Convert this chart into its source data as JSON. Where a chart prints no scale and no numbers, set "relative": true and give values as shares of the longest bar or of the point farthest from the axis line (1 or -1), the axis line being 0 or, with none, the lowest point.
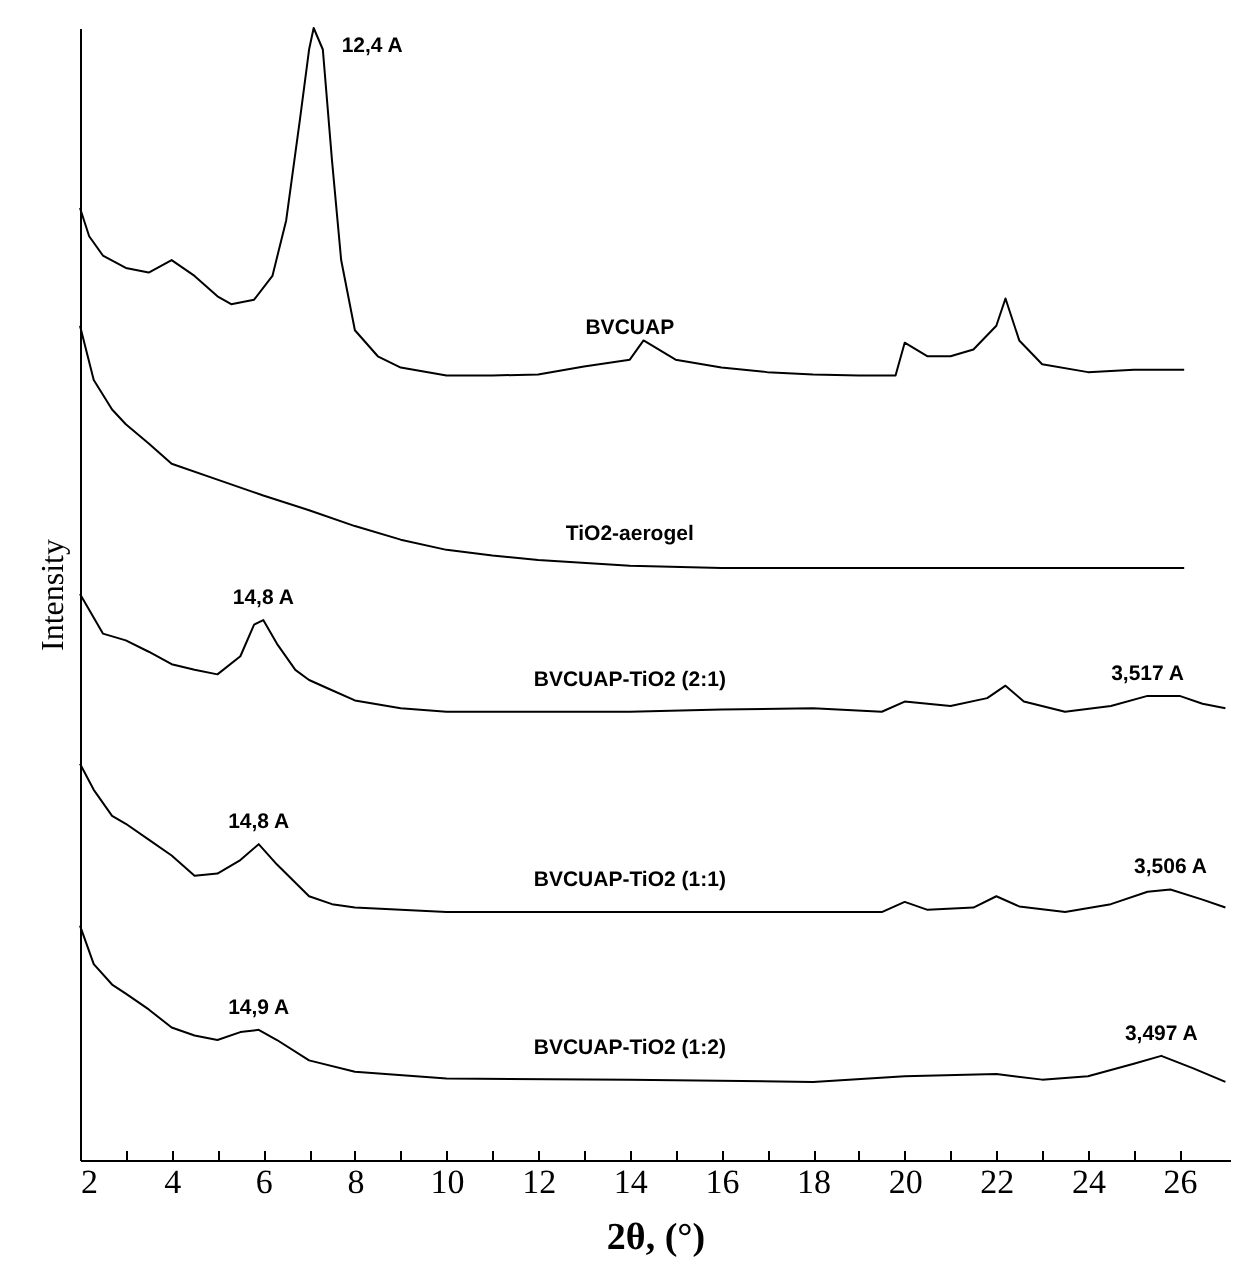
{
  "chart_data": {
    "type": "line",
    "xlabel": "2θ, (°)",
    "ylabel": "Intensity",
    "relative": true,
    "grid": false,
    "marker": "none",
    "line_style": "solid",
    "xlim": [
      2,
      27.1
    ],
    "xticks": [
      2,
      {
        "value": 3,
        "label": null
      },
      4,
      {
        "value": 5,
        "label": null
      },
      6,
      {
        "value": 7,
        "label": null
      },
      8,
      {
        "value": 9,
        "label": null
      },
      10,
      {
        "value": 11,
        "label": null
      },
      12,
      {
        "value": 13,
        "label": null
      },
      14,
      {
        "value": 15,
        "label": null
      },
      16,
      {
        "value": 17,
        "label": null
      },
      18,
      {
        "value": 19,
        "label": null
      },
      20,
      {
        "value": 21,
        "label": null
      },
      22,
      {
        "value": 23,
        "label": null
      },
      24,
      {
        "value": 25,
        "label": null
      },
      26
    ],
    "series": [
      {
        "name": "BVCUAP",
        "color": "#000000",
        "x": [
          2,
          2.2,
          2.5,
          3,
          3.5,
          4,
          4.5,
          5,
          5.3,
          5.8,
          6.2,
          6.5,
          6.8,
          7,
          7.1,
          7.3,
          7.5,
          7.7,
          8,
          8.5,
          9,
          10,
          11,
          12,
          13,
          14,
          14.3,
          15,
          16,
          17,
          18,
          19,
          19.8,
          20,
          20.5,
          21,
          21.5,
          22,
          22.2,
          22.5,
          23,
          24,
          25,
          26.1
        ],
        "values": [
          0.841,
          0.816,
          0.799,
          0.788,
          0.784,
          0.795,
          0.781,
          0.763,
          0.756,
          0.76,
          0.781,
          0.83,
          0.919,
          0.981,
          1,
          0.981,
          0.883,
          0.795,
          0.733,
          0.71,
          0.7,
          0.693,
          0.693,
          0.694,
          0.701,
          0.707,
          0.724,
          0.707,
          0.7,
          0.696,
          0.694,
          0.693,
          0.693,
          0.722,
          0.71,
          0.71,
          0.716,
          0.737,
          0.761,
          0.724,
          0.703,
          0.696,
          0.698,
          0.698
        ]
      },
      {
        "name": "TiO2-aerogel",
        "color": "#000000",
        "x": [
          2,
          2.3,
          2.7,
          3,
          3.5,
          4,
          5,
          6,
          7,
          8,
          9,
          10,
          11,
          12,
          14,
          16,
          20,
          24,
          26.1
        ],
        "values": [
          0.737,
          0.689,
          0.663,
          0.65,
          0.633,
          0.615,
          0.601,
          0.587,
          0.574,
          0.56,
          0.548,
          0.539,
          0.534,
          0.53,
          0.525,
          0.523,
          0.523,
          0.523,
          0.523
        ]
      },
      {
        "name": "BVCUAP-TiO2 (2:1)",
        "color": "#000000",
        "x": [
          2,
          2.5,
          3,
          3.5,
          4,
          4.5,
          5,
          5.5,
          5.8,
          6,
          6.3,
          6.7,
          7,
          7.5,
          8,
          9,
          10,
          12,
          14,
          16,
          18,
          19.5,
          20,
          21,
          21.8,
          22.2,
          22.6,
          23.5,
          24.5,
          25.3,
          26,
          26.5,
          27
        ],
        "values": [
          0.5,
          0.465,
          0.459,
          0.449,
          0.438,
          0.433,
          0.429,
          0.445,
          0.473,
          0.477,
          0.456,
          0.433,
          0.424,
          0.415,
          0.406,
          0.399,
          0.396,
          0.396,
          0.396,
          0.398,
          0.399,
          0.396,
          0.405,
          0.401,
          0.408,
          0.419,
          0.405,
          0.396,
          0.401,
          0.41,
          0.41,
          0.403,
          0.399
        ]
      },
      {
        "name": "BVCUAP-TiO2 (1:1)",
        "color": "#000000",
        "x": [
          2,
          2.3,
          2.7,
          3,
          3.5,
          4,
          4.5,
          5,
          5.5,
          5.9,
          6.3,
          7,
          7.5,
          8,
          10,
          14,
          18,
          19.5,
          20,
          20.5,
          21.5,
          22,
          22.5,
          23.5,
          24.5,
          25.3,
          25.8,
          26.5,
          27
        ],
        "values": [
          0.35,
          0.327,
          0.304,
          0.297,
          0.283,
          0.269,
          0.251,
          0.253,
          0.265,
          0.279,
          0.261,
          0.233,
          0.226,
          0.223,
          0.219,
          0.219,
          0.219,
          0.219,
          0.228,
          0.221,
          0.223,
          0.233,
          0.224,
          0.219,
          0.226,
          0.237,
          0.239,
          0.23,
          0.223
        ]
      },
      {
        "name": "BVCUAP-TiO2 (1:2)",
        "color": "#000000",
        "x": [
          2,
          2.3,
          2.7,
          3,
          3.5,
          4,
          4.5,
          5,
          5.5,
          5.9,
          6.3,
          7,
          8,
          10,
          14,
          18,
          20,
          22,
          23,
          24,
          25,
          25.6,
          26.3,
          27
        ],
        "values": [
          0.207,
          0.173,
          0.155,
          0.147,
          0.133,
          0.117,
          0.11,
          0.106,
          0.113,
          0.115,
          0.106,
          0.088,
          0.078,
          0.072,
          0.071,
          0.069,
          0.074,
          0.076,
          0.071,
          0.074,
          0.085,
          0.092,
          0.081,
          0.069
        ]
      }
    ],
    "annotations": [
      {
        "text": "12,4 A",
        "x": 7.1,
        "y": 1
      },
      {
        "text": "14,8 A",
        "x": 6,
        "y": 0.477
      },
      {
        "text": "14,8 A",
        "x": 5.9,
        "y": 0.279
      },
      {
        "text": "14,9 A",
        "x": 5.9,
        "y": 0.115
      },
      {
        "text": "3,517 A",
        "x": 25.3,
        "y": 0.41
      },
      {
        "text": "3,506 A",
        "x": 25.8,
        "y": 0.239
      },
      {
        "text": "3,497 A",
        "x": 25.6,
        "y": 0.092
      }
    ]
  }
}
